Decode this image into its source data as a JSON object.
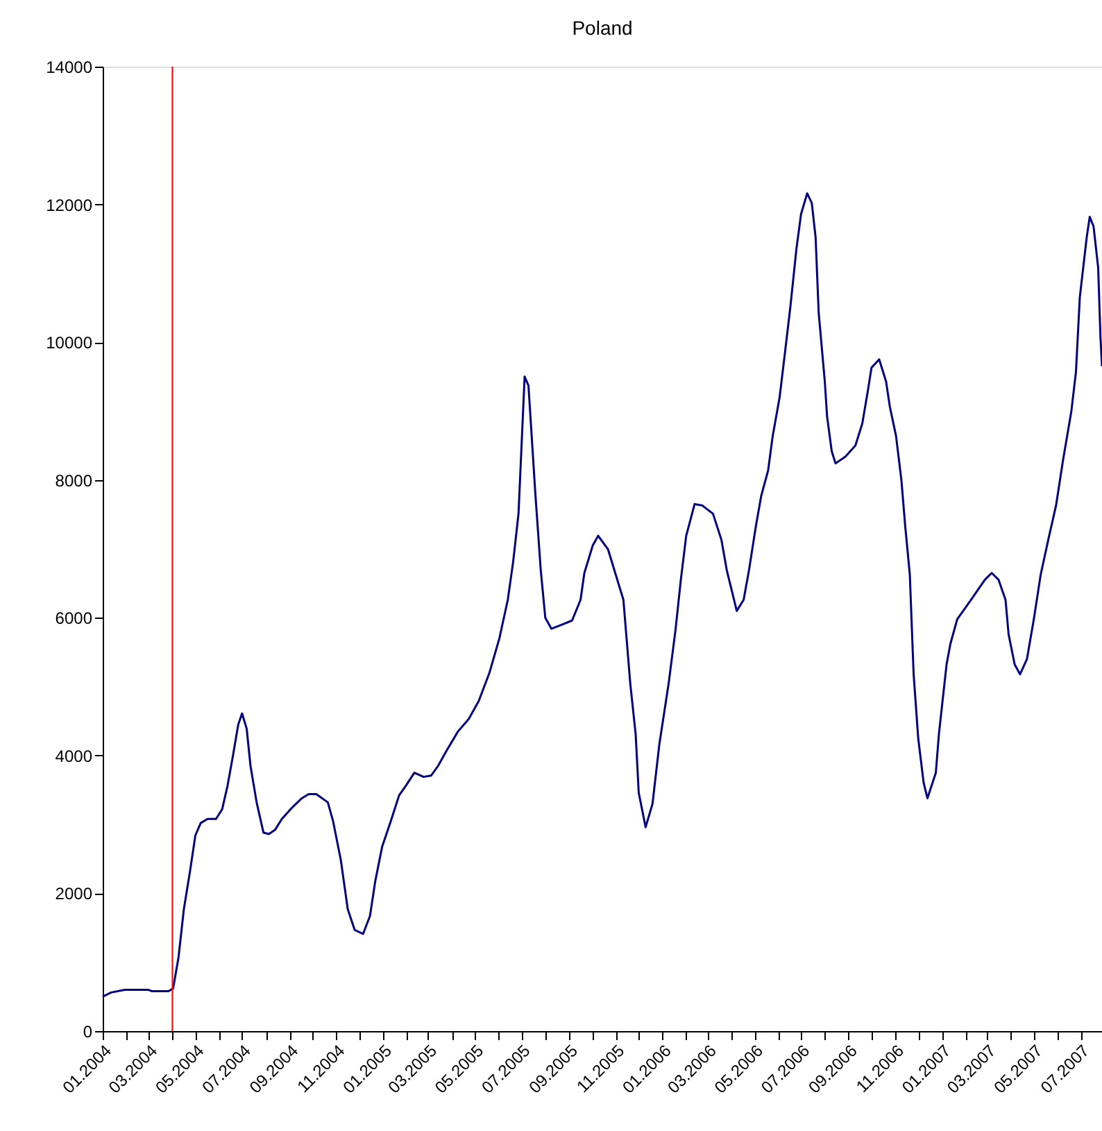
{
  "chart_data": {
    "type": "line",
    "title": "Poland",
    "x": [
      "2004-01-01",
      "2004-01-12",
      "2004-01-30",
      "2004-02-29",
      "2004-03-05",
      "2004-03-27",
      "2004-04-02",
      "2004-04-09",
      "2004-04-16",
      "2004-04-24",
      "2004-05-01",
      "2004-05-08",
      "2004-05-17",
      "2004-05-28",
      "2004-06-05",
      "2004-06-12",
      "2004-06-19",
      "2004-06-26",
      "2004-07-01",
      "2004-07-07",
      "2004-07-12",
      "2004-07-20",
      "2004-07-29",
      "2004-08-05",
      "2004-08-13",
      "2004-08-22",
      "2004-09-04",
      "2004-09-17",
      "2004-09-26",
      "2004-10-06",
      "2004-10-21",
      "2004-10-28",
      "2004-11-07",
      "2004-11-16",
      "2004-11-25",
      "2004-12-06",
      "2004-12-15",
      "2004-12-22",
      "2004-12-31",
      "2005-01-11",
      "2005-01-22",
      "2005-02-01",
      "2005-02-11",
      "2005-02-23",
      "2005-03-05",
      "2005-03-14",
      "2005-03-25",
      "2005-04-09",
      "2005-04-23",
      "2005-05-06",
      "2005-05-20",
      "2005-06-02",
      "2005-06-13",
      "2005-06-20",
      "2005-06-27",
      "2005-07-05",
      "2005-07-10",
      "2005-07-19",
      "2005-07-26",
      "2005-08-01",
      "2005-08-09",
      "2005-08-23",
      "2005-09-05",
      "2005-09-16",
      "2005-09-21",
      "2005-10-02",
      "2005-10-09",
      "2005-10-22",
      "2005-11-11",
      "2005-11-20",
      "2005-11-27",
      "2005-12-01",
      "2005-12-10",
      "2005-12-19",
      "2005-12-28",
      "2006-01-09",
      "2006-01-18",
      "2006-01-25",
      "2006-02-01",
      "2006-02-12",
      "2006-02-22",
      "2006-03-08",
      "2006-03-19",
      "2006-03-26",
      "2006-04-08",
      "2006-04-17",
      "2006-04-24",
      "2006-05-03",
      "2006-05-10",
      "2006-05-19",
      "2006-05-25",
      "2006-06-03",
      "2006-06-10",
      "2006-06-17",
      "2006-06-25",
      "2006-07-01",
      "2006-07-09",
      "2006-07-15",
      "2006-07-20",
      "2006-07-24",
      "2006-08-01",
      "2006-08-04",
      "2006-08-10",
      "2006-08-15",
      "2006-08-28",
      "2006-09-10",
      "2006-09-19",
      "2006-09-26",
      "2006-10-01",
      "2006-10-11",
      "2006-10-20",
      "2006-10-25",
      "2006-11-02",
      "2006-11-09",
      "2006-11-14",
      "2006-11-20",
      "2006-11-25",
      "2006-12-01",
      "2006-12-08",
      "2006-12-13",
      "2006-12-24",
      "2006-12-28",
      "2007-01-07",
      "2007-01-12",
      "2007-01-21",
      "2007-02-08",
      "2007-02-26",
      "2007-03-07",
      "2007-03-16",
      "2007-03-25",
      "2007-03-29",
      "2007-04-06",
      "2007-04-13",
      "2007-04-22",
      "2007-05-01",
      "2007-05-10",
      "2007-05-21",
      "2007-05-30",
      "2007-06-08",
      "2007-06-19",
      "2007-06-25",
      "2007-06-30",
      "2007-07-09",
      "2007-07-13",
      "2007-07-18",
      "2007-07-24",
      "2007-07-27",
      "2007-07-29"
    ],
    "series": [
      {
        "color": "#000080",
        "values": [
          500,
          560,
          600,
          600,
          580,
          580,
          620,
          1070,
          1770,
          2320,
          2840,
          3020,
          3080,
          3080,
          3220,
          3560,
          3990,
          4450,
          4610,
          4390,
          3850,
          3320,
          2880,
          2860,
          2920,
          3080,
          3240,
          3380,
          3440,
          3440,
          3320,
          3040,
          2480,
          1770,
          1470,
          1410,
          1670,
          2180,
          2680,
          3040,
          3420,
          3580,
          3750,
          3690,
          3710,
          3850,
          4070,
          4350,
          4530,
          4790,
          5200,
          5700,
          6260,
          6810,
          7510,
          9500,
          9370,
          7800,
          6700,
          6000,
          5840,
          5900,
          5960,
          6260,
          6650,
          7050,
          7190,
          6990,
          6260,
          5040,
          4310,
          3460,
          2960,
          3300,
          4170,
          5040,
          5820,
          6550,
          7190,
          7650,
          7630,
          7510,
          7130,
          6690,
          6100,
          6260,
          6690,
          7330,
          7770,
          8140,
          8640,
          9200,
          9850,
          10510,
          11360,
          11860,
          12160,
          12020,
          11520,
          10430,
          9430,
          8920,
          8420,
          8240,
          8340,
          8500,
          8820,
          9280,
          9630,
          9750,
          9430,
          9060,
          8640,
          8000,
          7330,
          6630,
          5180,
          4250,
          3610,
          3380,
          3750,
          4310,
          5320,
          5620,
          5980,
          6260,
          6550,
          6650,
          6550,
          6260,
          5760,
          5320,
          5180,
          5400,
          5980,
          6630,
          7190,
          7630,
          8280,
          9000,
          9570,
          10650,
          11520,
          11820,
          11680,
          11080,
          10070,
          9650
        ]
      }
    ],
    "xlim": [
      "2004-01-01",
      "2007-07-29"
    ],
    "xticks": [
      {
        "value": "2004-01-01",
        "label": "01.2004"
      },
      {
        "value": "2004-02-01",
        "label": null
      },
      {
        "value": "2004-03-01",
        "label": "03.2004"
      },
      {
        "value": "2004-04-01",
        "label": null
      },
      {
        "value": "2004-05-01",
        "label": "05.2004"
      },
      {
        "value": "2004-06-01",
        "label": null
      },
      {
        "value": "2004-07-01",
        "label": "07.2004"
      },
      {
        "value": "2004-08-01",
        "label": null
      },
      {
        "value": "2004-09-01",
        "label": "09.2004"
      },
      {
        "value": "2004-10-01",
        "label": null
      },
      {
        "value": "2004-11-01",
        "label": "11.2004"
      },
      {
        "value": "2004-12-01",
        "label": null
      },
      {
        "value": "2005-01-01",
        "label": "01.2005"
      },
      {
        "value": "2005-02-01",
        "label": null
      },
      {
        "value": "2005-03-01",
        "label": "03.2005"
      },
      {
        "value": "2005-04-01",
        "label": null
      },
      {
        "value": "2005-05-01",
        "label": "05.2005"
      },
      {
        "value": "2005-06-01",
        "label": null
      },
      {
        "value": "2005-07-01",
        "label": "07.2005"
      },
      {
        "value": "2005-08-01",
        "label": null
      },
      {
        "value": "2005-09-01",
        "label": "09.2005"
      },
      {
        "value": "2005-10-01",
        "label": null
      },
      {
        "value": "2005-11-01",
        "label": "11.2005"
      },
      {
        "value": "2005-12-01",
        "label": null
      },
      {
        "value": "2006-01-01",
        "label": "01.2006"
      },
      {
        "value": "2006-02-01",
        "label": null
      },
      {
        "value": "2006-03-01",
        "label": "03.2006"
      },
      {
        "value": "2006-04-01",
        "label": null
      },
      {
        "value": "2006-05-01",
        "label": "05.2006"
      },
      {
        "value": "2006-06-01",
        "label": null
      },
      {
        "value": "2006-07-01",
        "label": "07.2006"
      },
      {
        "value": "2006-08-01",
        "label": null
      },
      {
        "value": "2006-09-01",
        "label": "09.2006"
      },
      {
        "value": "2006-10-01",
        "label": null
      },
      {
        "value": "2006-11-01",
        "label": "11.2006"
      },
      {
        "value": "2006-12-01",
        "label": null
      },
      {
        "value": "2007-01-01",
        "label": "01.2007"
      },
      {
        "value": "2007-02-01",
        "label": null
      },
      {
        "value": "2007-03-01",
        "label": "03.2007"
      },
      {
        "value": "2007-04-01",
        "label": null
      },
      {
        "value": "2007-05-01",
        "label": "05.2007"
      },
      {
        "value": "2007-06-01",
        "label": null
      },
      {
        "value": "2007-07-01",
        "label": "07.2007"
      }
    ],
    "ylim": [
      0,
      14000
    ],
    "yticks": [
      0,
      2000,
      4000,
      6000,
      8000,
      10000,
      12000,
      14000
    ],
    "ref_lines": [
      {
        "axis": "x",
        "value": "2004-04-01",
        "color": "#ff0000"
      }
    ],
    "grid": false,
    "marker": "none",
    "line_style": "solid"
  }
}
